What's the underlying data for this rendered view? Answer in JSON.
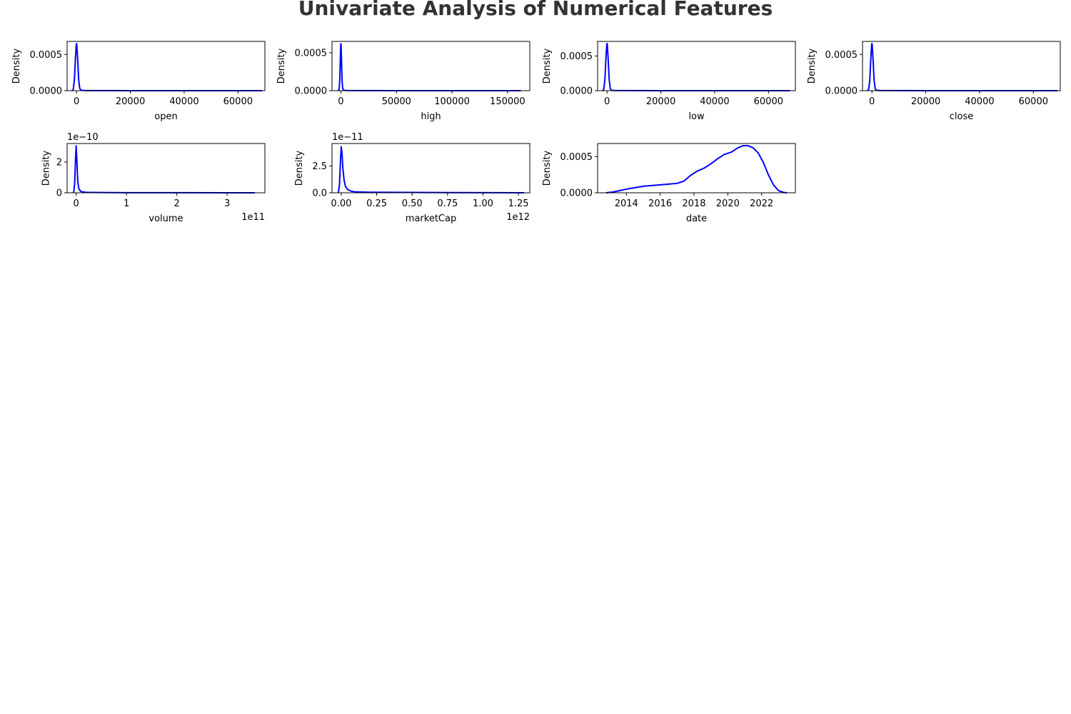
{
  "figure": {
    "title": "Univariate Analysis of Numerical Features",
    "title_color": "#333333",
    "line_color": "#0000ff",
    "grid": false
  },
  "chart_data": [
    {
      "type": "line",
      "xlabel": "open",
      "ylabel": "Density",
      "xlim": [
        -3500,
        70000
      ],
      "ylim": [
        0,
        0.00068
      ],
      "xticks": [
        0,
        20000,
        40000,
        60000
      ],
      "xtick_labels": [
        "0",
        "20000",
        "40000",
        "60000"
      ],
      "yticks": [
        0,
        0.0005
      ],
      "ytick_labels": [
        "0.0000",
        "0.0005"
      ],
      "x_offset_label": "",
      "y_offset_label": "",
      "series": [
        {
          "x": [
            -1700,
            -1200,
            -800,
            -400,
            -100,
            0,
            100,
            400,
            800,
            1200,
            1700,
            3000,
            10000,
            20000,
            40000,
            60000,
            69000
          ],
          "y": [
            0,
            2e-05,
            0.00015,
            0.00045,
            0.00063,
            0.00065,
            0.00063,
            0.00045,
            0.00015,
            3e-05,
            5e-06,
            2e-06,
            1e-06,
            5e-07,
            3e-07,
            2e-07,
            0
          ]
        }
      ]
    },
    {
      "type": "line",
      "xlabel": "high",
      "ylabel": "Density",
      "xlim": [
        -8000,
        170000
      ],
      "ylim": [
        0,
        0.00065
      ],
      "xticks": [
        0,
        50000,
        100000,
        150000
      ],
      "xtick_labels": [
        "0",
        "50000",
        "100000",
        "150000"
      ],
      "yticks": [
        0,
        0.0005
      ],
      "ytick_labels": [
        "0.0000",
        "0.0005"
      ],
      "x_offset_label": "",
      "y_offset_label": "",
      "series": [
        {
          "x": [
            -2400,
            -1600,
            -1000,
            -500,
            -150,
            0,
            150,
            500,
            1000,
            1600,
            2400,
            5000,
            20000,
            60000,
            100000,
            140000,
            162000
          ],
          "y": [
            0,
            2e-05,
            0.00014,
            0.00042,
            0.0006,
            0.00062,
            0.0006,
            0.00042,
            0.00014,
            3e-05,
            6e-06,
            2e-06,
            1e-06,
            4e-07,
            2e-07,
            1e-07,
            0
          ]
        }
      ]
    },
    {
      "type": "line",
      "xlabel": "low",
      "ylabel": "Density",
      "xlim": [
        -3500,
        70000
      ],
      "ylim": [
        0,
        0.00071
      ],
      "xticks": [
        0,
        20000,
        40000,
        60000
      ],
      "xtick_labels": [
        "0",
        "20000",
        "40000",
        "60000"
      ],
      "yticks": [
        0,
        0.0005
      ],
      "ytick_labels": [
        "0.0000",
        "0.0005"
      ],
      "x_offset_label": "",
      "y_offset_label": "",
      "series": [
        {
          "x": [
            -1700,
            -1200,
            -800,
            -400,
            -100,
            0,
            100,
            400,
            800,
            1200,
            1700,
            3000,
            10000,
            20000,
            40000,
            60000,
            68000
          ],
          "y": [
            0,
            2e-05,
            0.00016,
            0.00047,
            0.00066,
            0.00068,
            0.00066,
            0.00047,
            0.00016,
            3e-05,
            5e-06,
            2e-06,
            1e-06,
            5e-07,
            3e-07,
            2e-07,
            0
          ]
        }
      ]
    },
    {
      "type": "line",
      "xlabel": "close",
      "ylabel": "Density",
      "xlim": [
        -3500,
        70000
      ],
      "ylim": [
        0,
        0.00068
      ],
      "xticks": [
        0,
        20000,
        40000,
        60000
      ],
      "xtick_labels": [
        "0",
        "20000",
        "40000",
        "60000"
      ],
      "yticks": [
        0,
        0.0005
      ],
      "ytick_labels": [
        "0.0000",
        "0.0005"
      ],
      "x_offset_label": "",
      "y_offset_label": "",
      "series": [
        {
          "x": [
            -1700,
            -1200,
            -800,
            -400,
            -100,
            0,
            100,
            400,
            800,
            1200,
            1700,
            3000,
            10000,
            20000,
            40000,
            60000,
            69000
          ],
          "y": [
            0,
            2e-05,
            0.00015,
            0.00045,
            0.00063,
            0.00065,
            0.00063,
            0.00045,
            0.00015,
            3e-05,
            5e-06,
            2e-06,
            1e-06,
            5e-07,
            3e-07,
            2e-07,
            0
          ]
        }
      ]
    },
    {
      "type": "line",
      "xlabel": "volume",
      "ylabel": "Density",
      "xlim": [
        -0.18,
        3.75
      ],
      "ylim": [
        0,
        3.2
      ],
      "xticks": [
        0,
        1,
        2,
        3
      ],
      "xtick_labels": [
        "0",
        "1",
        "2",
        "3"
      ],
      "yticks": [
        0,
        2
      ],
      "ytick_labels": [
        "0",
        "2"
      ],
      "x_offset_label": "1e11",
      "y_offset_label": "1e−10",
      "series": [
        {
          "x": [
            -0.05,
            -0.03,
            -0.015,
            0,
            0.015,
            0.03,
            0.05,
            0.08,
            0.12,
            0.2,
            0.5,
            1.0,
            2.0,
            3.0,
            3.55
          ],
          "y": [
            0,
            0.6,
            2.0,
            3.05,
            2.0,
            0.8,
            0.3,
            0.12,
            0.06,
            0.03,
            0.015,
            0.008,
            0.004,
            0.002,
            0
          ]
        }
      ]
    },
    {
      "type": "line",
      "xlabel": "marketCap",
      "ylabel": "Density",
      "xlim": [
        -0.065,
        1.33
      ],
      "ylim": [
        0,
        4.6
      ],
      "xticks": [
        0,
        0.25,
        0.5,
        0.75,
        1.0,
        1.25
      ],
      "xtick_labels": [
        "0.00",
        "0.25",
        "0.50",
        "0.75",
        "1.00",
        "1.25"
      ],
      "yticks": [
        0,
        2.5
      ],
      "ytick_labels": [
        "0.0",
        "2.5"
      ],
      "x_offset_label": "1e12",
      "y_offset_label": "1e−11",
      "series": [
        {
          "x": [
            -0.02,
            -0.012,
            -0.006,
            0,
            0.006,
            0.012,
            0.02,
            0.03,
            0.045,
            0.07,
            0.1,
            0.2,
            0.5,
            0.8,
            1.1,
            1.29
          ],
          "y": [
            0,
            0.8,
            2.8,
            4.3,
            3.6,
            2.2,
            1.2,
            0.6,
            0.3,
            0.15,
            0.08,
            0.05,
            0.03,
            0.02,
            0.01,
            0
          ]
        }
      ]
    },
    {
      "type": "line",
      "xlabel": "date",
      "ylabel": "Density",
      "xlim": [
        2012.3,
        2024.0
      ],
      "ylim": [
        0,
        0.00068
      ],
      "xticks": [
        2014,
        2016,
        2018,
        2020,
        2022
      ],
      "xtick_labels": [
        "2014",
        "2016",
        "2018",
        "2020",
        "2022"
      ],
      "yticks": [
        0,
        0.0005
      ],
      "ytick_labels": [
        "0.0000",
        "0.0005"
      ],
      "x_offset_label": "",
      "y_offset_label": "",
      "series": [
        {
          "x": [
            2012.8,
            2013.2,
            2013.6,
            2014.0,
            2014.5,
            2015.0,
            2015.5,
            2016.0,
            2016.5,
            2017.0,
            2017.4,
            2017.8,
            2018.2,
            2018.6,
            2019.0,
            2019.4,
            2019.8,
            2020.2,
            2020.6,
            2020.9,
            2021.2,
            2021.5,
            2021.8,
            2022.1,
            2022.4,
            2022.7,
            2023.0,
            2023.3,
            2023.5
          ],
          "y": [
            0,
            1e-05,
            3e-05,
            5e-05,
            7e-05,
            9e-05,
            0.0001,
            0.00011,
            0.00012,
            0.00013,
            0.00016,
            0.00024,
            0.0003,
            0.00034,
            0.0004,
            0.00047,
            0.00053,
            0.00056,
            0.00062,
            0.00065,
            0.00065,
            0.00062,
            0.00055,
            0.00042,
            0.00025,
            0.00011,
            3e-05,
            5e-06,
            0
          ]
        }
      ]
    }
  ]
}
